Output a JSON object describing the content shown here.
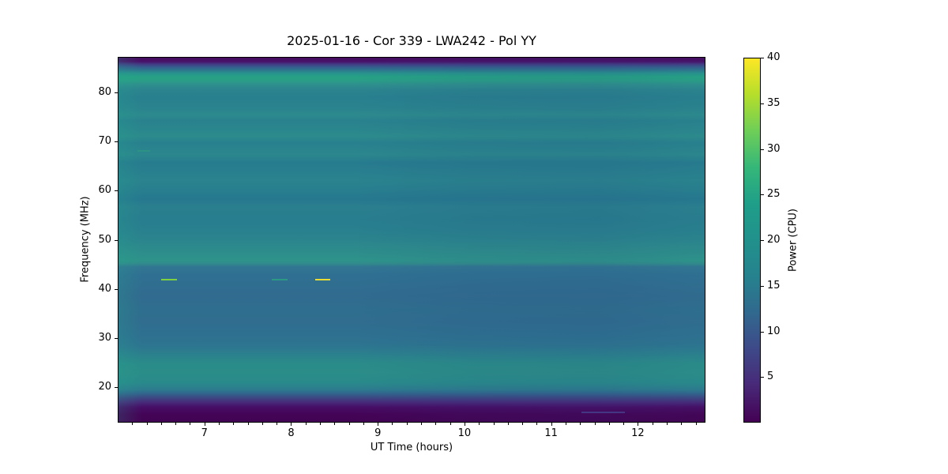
{
  "chart_data": {
    "type": "heatmap",
    "title": "2025-01-16 - Cor 339 - LWA242 - Pol YY",
    "xlabel": "UT Time (hours)",
    "ylabel": "Frequency (MHz)",
    "colorbar_label": "Power (CPU)",
    "colormap": "viridis",
    "xlim": [
      6.0,
      12.78
    ],
    "ylim": [
      12.8,
      87.2
    ],
    "clim": [
      0,
      40
    ],
    "x_ticks": [
      7,
      8,
      9,
      10,
      11,
      12
    ],
    "x_minor_ticks_per_hour": 6,
    "y_ticks": [
      20,
      30,
      40,
      50,
      60,
      70,
      80
    ],
    "colorbar_ticks": [
      5,
      10,
      15,
      20,
      25,
      30,
      35,
      40
    ],
    "legend_position": "right-colorbar",
    "grid": false,
    "bands_summary": [
      {
        "freq_range_mhz": [
          85,
          87.2
        ],
        "approx_power": 2,
        "desc": "dark purple band at top edge"
      },
      {
        "freq_range_mhz": [
          82,
          85
        ],
        "approx_power": 21,
        "desc": "bright teal-green band"
      },
      {
        "freq_range_mhz": [
          46,
          82
        ],
        "approx_power": 16,
        "desc": "uniform teal background with faint horizontal striping"
      },
      {
        "freq_range_mhz": [
          44.5,
          46
        ],
        "approx_power": 18.5,
        "desc": "slightly brighter band"
      },
      {
        "freq_range_mhz": [
          27,
          44.5
        ],
        "approx_power": 13,
        "desc": "darker blue region"
      },
      {
        "freq_range_mhz": [
          17,
          27
        ],
        "approx_power": 17,
        "desc": "brighter teal band"
      },
      {
        "freq_range_mhz": [
          12.8,
          17
        ],
        "approx_power": 1.5,
        "desc": "dark purple band at bottom edge"
      }
    ],
    "freq_profile": [
      {
        "freq": 87.2,
        "power": 1.5,
        "color": "#460b5e"
      },
      {
        "freq": 86.4,
        "power": 2.5,
        "color": "#48126a"
      },
      {
        "freq": 85.9,
        "power": 6.5,
        "color": "#443983"
      },
      {
        "freq": 85.3,
        "power": 10.5,
        "color": "#365c8d"
      },
      {
        "freq": 84.6,
        "power": 14.0,
        "color": "#2d798e"
      },
      {
        "freq": 84.0,
        "power": 19.0,
        "color": "#28938d"
      },
      {
        "freq": 83.3,
        "power": 22.5,
        "color": "#26a185"
      },
      {
        "freq": 82.5,
        "power": 22.0,
        "color": "#2a9e87"
      },
      {
        "freq": 81.7,
        "power": 18.5,
        "color": "#2e8f8d"
      },
      {
        "freq": 80.6,
        "power": 16.5,
        "color": "#2b848e"
      },
      {
        "freq": 79.2,
        "power": 15.5,
        "color": "#287f8e"
      },
      {
        "freq": 76.9,
        "power": 16.0,
        "color": "#2a838e"
      },
      {
        "freq": 75.5,
        "power": 17.5,
        "color": "#2c8a8d"
      },
      {
        "freq": 74.3,
        "power": 15.8,
        "color": "#29818e"
      },
      {
        "freq": 72.6,
        "power": 16.8,
        "color": "#2a868d"
      },
      {
        "freq": 71.1,
        "power": 17.6,
        "color": "#2c8b8c"
      },
      {
        "freq": 69.8,
        "power": 15.6,
        "color": "#28808e"
      },
      {
        "freq": 67.4,
        "power": 17.0,
        "color": "#2b878d"
      },
      {
        "freq": 65.8,
        "power": 15.0,
        "color": "#277b8e"
      },
      {
        "freq": 64.2,
        "power": 15.4,
        "color": "#287e8e"
      },
      {
        "freq": 62.1,
        "power": 16.2,
        "color": "#2a838e"
      },
      {
        "freq": 60.2,
        "power": 15.4,
        "color": "#287e8e"
      },
      {
        "freq": 58.3,
        "power": 14.5,
        "color": "#26788f"
      },
      {
        "freq": 56.7,
        "power": 15.6,
        "color": "#2a7f8e"
      },
      {
        "freq": 54.1,
        "power": 15.3,
        "color": "#287d8e"
      },
      {
        "freq": 51.8,
        "power": 15.7,
        "color": "#29808e"
      },
      {
        "freq": 49.8,
        "power": 16.6,
        "color": "#2b858d"
      },
      {
        "freq": 47.7,
        "power": 17.8,
        "color": "#2d8c8b"
      },
      {
        "freq": 45.7,
        "power": 19.0,
        "color": "#2e938a"
      },
      {
        "freq": 45.1,
        "power": 17.4,
        "color": "#318a8c"
      },
      {
        "freq": 44.5,
        "power": 13.8,
        "color": "#317692"
      },
      {
        "freq": 42.8,
        "power": 13.0,
        "color": "#2f7092"
      },
      {
        "freq": 40.9,
        "power": 12.7,
        "color": "#306e90"
      },
      {
        "freq": 38.5,
        "power": 12.2,
        "color": "#316b8f"
      },
      {
        "freq": 35.8,
        "power": 12.6,
        "color": "#2f6e8e"
      },
      {
        "freq": 33.2,
        "power": 12.4,
        "color": "#306d8f"
      },
      {
        "freq": 30.6,
        "power": 12.9,
        "color": "#2e7090"
      },
      {
        "freq": 28.4,
        "power": 13.6,
        "color": "#2d7590"
      },
      {
        "freq": 26.5,
        "power": 15.8,
        "color": "#2b818d"
      },
      {
        "freq": 24.8,
        "power": 17.7,
        "color": "#2a8b89"
      },
      {
        "freq": 22.9,
        "power": 18.0,
        "color": "#2b8d88"
      },
      {
        "freq": 20.8,
        "power": 17.5,
        "color": "#298a8b"
      },
      {
        "freq": 19.4,
        "power": 15.0,
        "color": "#2d7b8e"
      },
      {
        "freq": 18.7,
        "power": 11.5,
        "color": "#31688e"
      },
      {
        "freq": 17.8,
        "power": 7.5,
        "color": "#3b4a83"
      },
      {
        "freq": 16.8,
        "power": 4.5,
        "color": "#472a7a"
      },
      {
        "freq": 15.8,
        "power": 2.0,
        "color": "#460e66"
      },
      {
        "freq": 14.4,
        "power": 1.0,
        "color": "#440457"
      },
      {
        "freq": 12.8,
        "power": 0.8,
        "color": "#430354"
      }
    ],
    "events": [
      {
        "name": "bright-burst-1",
        "time_start": 6.49,
        "time_end": 6.67,
        "freq_mhz": 42.0,
        "power": 31,
        "color": "#80d13f",
        "opacity": 1
      },
      {
        "name": "faint-burst",
        "time_start": 7.77,
        "time_end": 7.95,
        "freq_mhz": 42.0,
        "power": 21,
        "color": "#2ba183",
        "opacity": 0.85
      },
      {
        "name": "bright-burst-2",
        "time_start": 8.27,
        "time_end": 8.44,
        "freq_mhz": 42.0,
        "power": 38,
        "color": "#e9dc32",
        "opacity": 1
      },
      {
        "name": "faint-enhancement",
        "time_start": 6.22,
        "time_end": 6.36,
        "freq_mhz": 68.2,
        "power": 19,
        "color": "#2f9c82",
        "opacity": 0.55
      },
      {
        "name": "faint-blue-streak",
        "time_start": 11.34,
        "time_end": 11.84,
        "freq_mhz": 15.0,
        "power": 8,
        "color": "#46549b",
        "opacity": 0.6
      }
    ],
    "colorbar_gradient": [
      {
        "frac": 0.0,
        "color": "#440154"
      },
      {
        "frac": 0.1,
        "color": "#482878"
      },
      {
        "frac": 0.2,
        "color": "#3e4989"
      },
      {
        "frac": 0.3,
        "color": "#31688e"
      },
      {
        "frac": 0.4,
        "color": "#26828e"
      },
      {
        "frac": 0.5,
        "color": "#21918c"
      },
      {
        "frac": 0.6,
        "color": "#1f9e89"
      },
      {
        "frac": 0.7,
        "color": "#35b779"
      },
      {
        "frac": 0.8,
        "color": "#6ece58"
      },
      {
        "frac": 0.9,
        "color": "#b5de2b"
      },
      {
        "frac": 1.0,
        "color": "#fde725"
      }
    ]
  }
}
